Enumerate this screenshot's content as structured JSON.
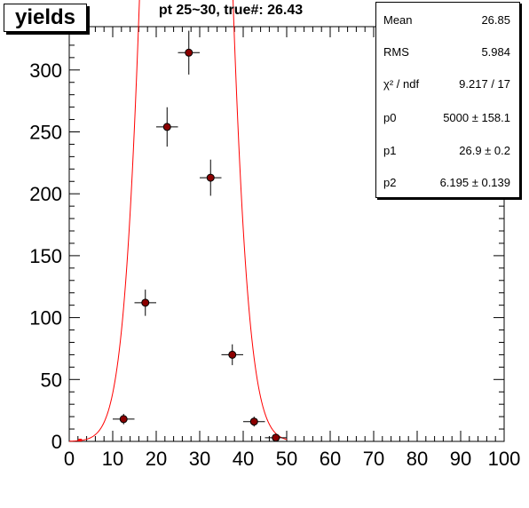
{
  "title": "yields",
  "subtitle": "pt 25~30, true#: 26.43",
  "stats": [
    {
      "key": "Mean",
      "value": "26.85"
    },
    {
      "key": "RMS",
      "value": "5.984"
    },
    {
      "key": "χ² / ndf",
      "value": "9.217 / 17"
    },
    {
      "key": "p0",
      "value": "5000  ± 158.1"
    },
    {
      "key": "p1",
      "value": "26.9  ± 0.2"
    },
    {
      "key": "p2",
      "value": "6.195  ± 0.139"
    }
  ],
  "colors": {
    "fit": "#ff0000",
    "points": "#000000",
    "marker_fill": "#8b0000"
  },
  "chart_data": {
    "type": "scatter",
    "title": "pt 25~30, true#: 26.43",
    "xlabel": "",
    "ylabel": "",
    "xlim": [
      0,
      100
    ],
    "ylim": [
      0,
      335
    ],
    "xticks": [
      "0",
      "10",
      "20",
      "30",
      "40",
      "50",
      "60",
      "70",
      "80",
      "90",
      "100"
    ],
    "yticks": [
      "0",
      "50",
      "100",
      "150",
      "200",
      "250",
      "300"
    ],
    "grid": false,
    "series": [
      {
        "x": [
          2.5,
          7.5,
          12.5,
          17.5,
          22.5,
          27.5,
          32.5,
          37.5,
          42.5,
          47.5
        ],
        "y": [
          0,
          0,
          18,
          112,
          254,
          314,
          213,
          70,
          16,
          3
        ],
        "yerr": [
          0,
          0,
          4.2,
          10.6,
          15.9,
          17.7,
          14.6,
          8.4,
          4.0,
          1.7
        ],
        "xerr": 2.5
      }
    ],
    "fit": {
      "function": "gaus",
      "p0": 5000,
      "p1": 26.9,
      "p2": 6.195,
      "bin_width": 5,
      "x_from": 0,
      "x_to": 50
    }
  }
}
